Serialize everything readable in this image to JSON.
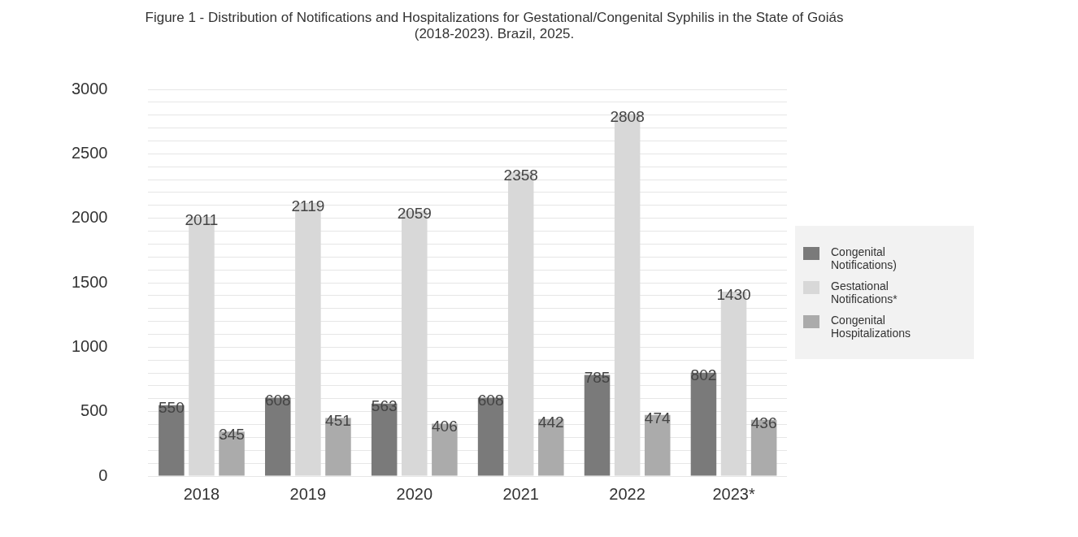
{
  "chart_data": {
    "type": "bar",
    "title": "Figure 1 - Distribution of Notifications and Hospitalizations for Gestational/Congenital Syphilis in the State of Goiás (2018-2023). Brazil, 2025.",
    "categories": [
      "2018",
      "2019",
      "2020",
      "2021",
      "2022",
      "2023*"
    ],
    "series": [
      {
        "name": "Congenital Notifications)",
        "color": "#7a7a7a",
        "values": [
          550,
          608,
          563,
          608,
          785,
          802
        ]
      },
      {
        "name": "Gestational Notifications*",
        "color": "#d8d8d8",
        "values": [
          2011,
          2119,
          2059,
          2358,
          2808,
          1430
        ]
      },
      {
        "name": "Congenital Hospitalizations",
        "color": "#ababab",
        "values": [
          345,
          451,
          406,
          442,
          474,
          436
        ]
      }
    ],
    "ylim": [
      0,
      3000
    ],
    "yticks": [
      0,
      {
        "value": 100,
        "label": null
      },
      {
        "value": 200,
        "label": null
      },
      {
        "value": 300,
        "label": null
      },
      {
        "value": 400,
        "label": null
      },
      500,
      {
        "value": 600,
        "label": null
      },
      {
        "value": 700,
        "label": null
      },
      {
        "value": 800,
        "label": null
      },
      {
        "value": 900,
        "label": null
      },
      1000,
      {
        "value": 1100,
        "label": null
      },
      {
        "value": 1200,
        "label": null
      },
      {
        "value": 1300,
        "label": null
      },
      {
        "value": 1400,
        "label": null
      },
      1500,
      {
        "value": 1600,
        "label": null
      },
      {
        "value": 1700,
        "label": null
      },
      {
        "value": 1800,
        "label": null
      },
      {
        "value": 1900,
        "label": null
      },
      2000,
      {
        "value": 2100,
        "label": null
      },
      {
        "value": 2200,
        "label": null
      },
      {
        "value": 2300,
        "label": null
      },
      {
        "value": 2400,
        "label": null
      },
      2500,
      {
        "value": 2600,
        "label": null
      },
      {
        "value": 2700,
        "label": null
      },
      {
        "value": 2800,
        "label": null
      },
      {
        "value": 2900,
        "label": null
      },
      3000
    ],
    "grid": "y",
    "data_labels": true,
    "legend": "right"
  }
}
